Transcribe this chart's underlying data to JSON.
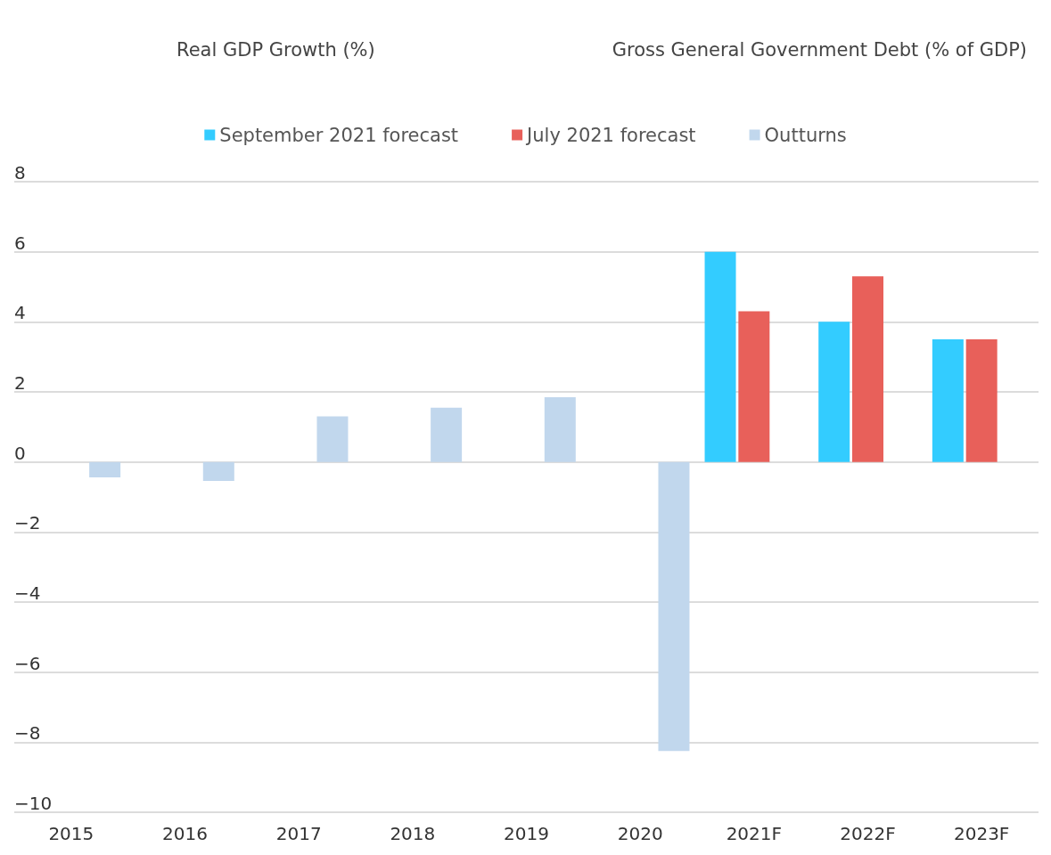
{
  "chart_data": {
    "type": "bar",
    "title": "Real GDP Growth (%)",
    "annotations": [
      "Gross General Government Debt (% of GDP)"
    ],
    "categories": [
      "2015",
      "2016",
      "2017",
      "2018",
      "2019",
      "2020",
      "2021F",
      "2022F",
      "2023F"
    ],
    "series": [
      {
        "name": "September 2021 forecast",
        "color": "#33ccff",
        "values": [
          null,
          null,
          null,
          null,
          null,
          null,
          6.0,
          4.0,
          3.5
        ]
      },
      {
        "name": "July 2021 forecast",
        "color": "#e8605a",
        "values": [
          null,
          null,
          null,
          null,
          null,
          null,
          4.3,
          5.3,
          3.5
        ]
      },
      {
        "name": "Outturns",
        "color": "#c1d7ed",
        "values": [
          -0.44,
          -0.54,
          1.3,
          1.55,
          1.85,
          -8.25,
          null,
          null,
          null
        ]
      }
    ],
    "ylim": [
      -10,
      8
    ],
    "yticks": [
      {
        "value": -10,
        "label": "−10"
      },
      {
        "value": -8,
        "label": "−8"
      },
      {
        "value": -6,
        "label": "−6"
      },
      {
        "value": -4,
        "label": "−4"
      },
      {
        "value": -2,
        "label": "−2"
      },
      0,
      2,
      4,
      6,
      8
    ],
    "grid": "y",
    "legend": "top"
  }
}
